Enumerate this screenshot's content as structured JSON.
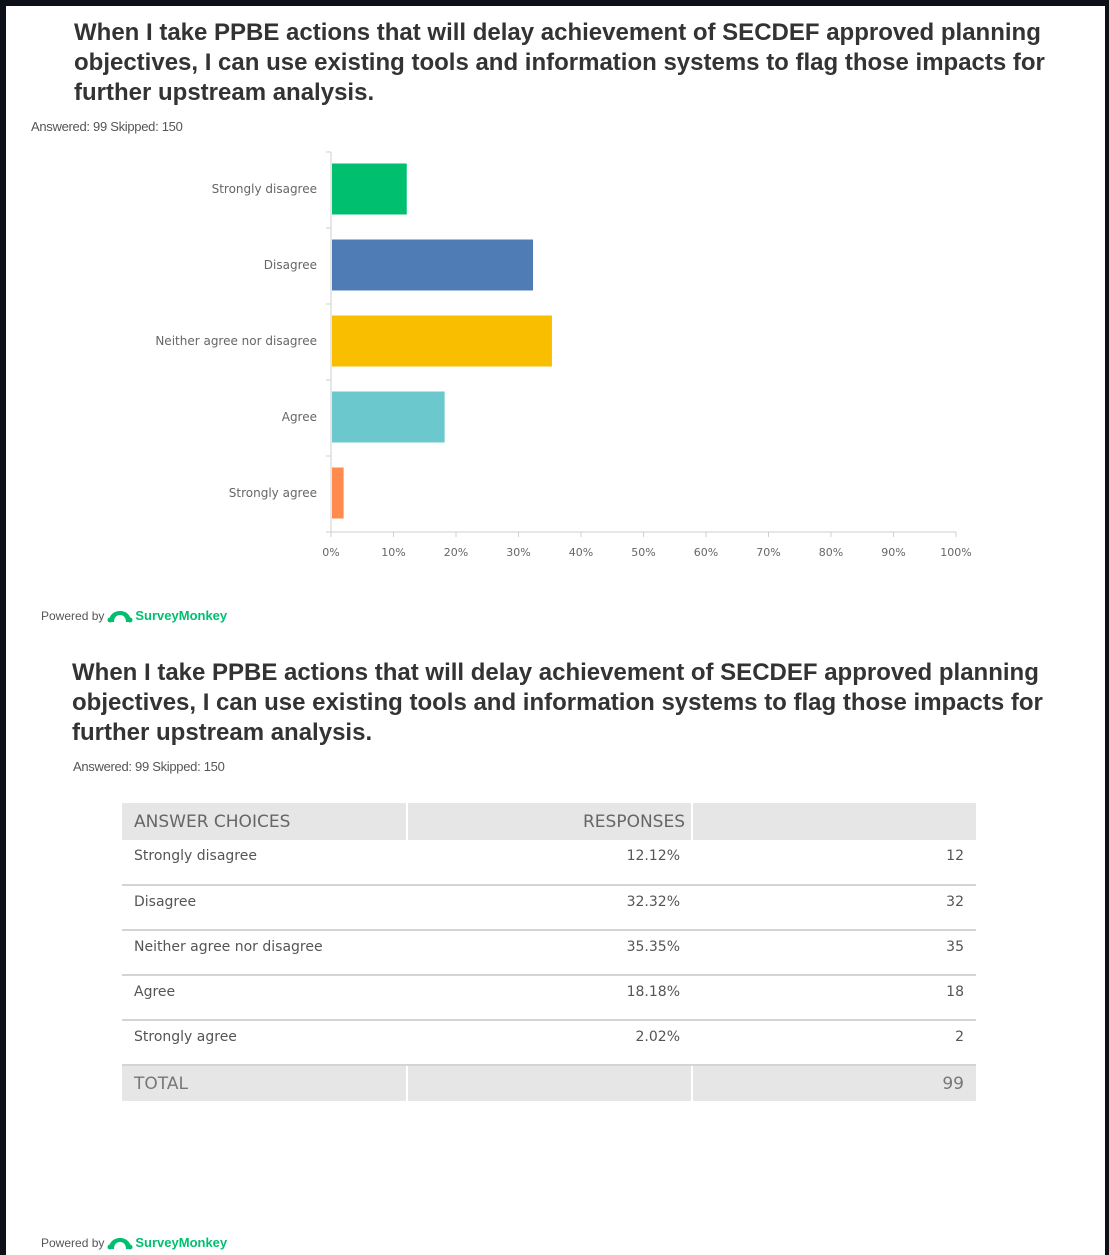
{
  "question": {
    "title": "When I take PPBE actions that will delay achievement of SECDEF approved planning objectives, I can use existing tools and information systems to flag those impacts for further upstream analysis.",
    "answered_text": "Answered: 99  Skipped: 150"
  },
  "chart_data": {
    "type": "bar",
    "orientation": "horizontal",
    "categories": [
      "Strongly disagree",
      "Disagree",
      "Neither agree nor disagree",
      "Agree",
      "Strongly agree"
    ],
    "values": [
      12.12,
      32.32,
      35.35,
      18.18,
      2.02
    ],
    "colors": [
      "#00bf6f",
      "#507cb6",
      "#f9be00",
      "#6bc8cd",
      "#ff8b4f"
    ],
    "xlim": [
      0,
      100
    ],
    "x_ticks": [
      "0%",
      "10%",
      "20%",
      "30%",
      "40%",
      "50%",
      "60%",
      "70%",
      "80%",
      "90%",
      "100%"
    ],
    "grid": false
  },
  "powered_by": {
    "prefix": "Powered by",
    "brand": "SurveyMonkey",
    "logo_icon": "surveymonkey-logo-icon"
  },
  "table": {
    "header": {
      "choices": "ANSWER CHOICES",
      "responses": "RESPONSES"
    },
    "rows": [
      {
        "label": "Strongly disagree",
        "percent": "12.12%",
        "count": "12"
      },
      {
        "label": "Disagree",
        "percent": "32.32%",
        "count": "32"
      },
      {
        "label": "Neither agree nor disagree",
        "percent": "35.35%",
        "count": "35"
      },
      {
        "label": "Agree",
        "percent": "18.18%",
        "count": "18"
      },
      {
        "label": "Strongly agree",
        "percent": "2.02%",
        "count": "2"
      }
    ],
    "total_label": "TOTAL",
    "total_value": "99"
  }
}
